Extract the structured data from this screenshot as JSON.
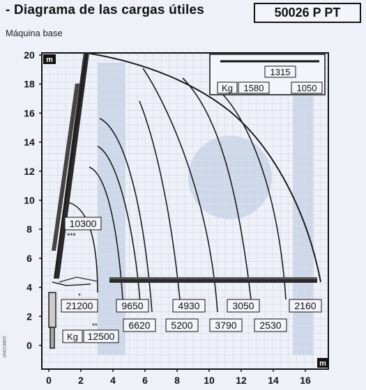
{
  "header": {
    "title": "- Diagrama de las cargas útiles",
    "model": "50026 P PT",
    "subtitle": "Máquina base",
    "side_code": "UNI21880D"
  },
  "axes": {
    "y_unit": "m",
    "x_unit": "m",
    "y_ticks": [
      "0",
      "2",
      "4",
      "6",
      "8",
      "10",
      "12",
      "14",
      "16",
      "18",
      "20"
    ],
    "x_ticks": [
      "0",
      "2",
      "4",
      "6",
      "8",
      "10",
      "12",
      "14",
      "16"
    ]
  },
  "inset": {
    "unit": "Kg",
    "top_value": "1315",
    "left_value": "1580",
    "right_value": "1050"
  },
  "labels": {
    "upper_value": "10300",
    "upper_mark": "***",
    "base_value": "21200",
    "base_mark": "*",
    "kg_unit": "Kg",
    "kg_value": "12500",
    "kg_mark": "**"
  },
  "load_boxes_row1": [
    "9650",
    "4930",
    "3050",
    "2160"
  ],
  "load_boxes_row2": [
    "6620",
    "5200",
    "3790",
    "2530"
  ],
  "colors": {
    "background": "#eef1f8",
    "curve": "#1a1a1a",
    "grid": "#d9dce6",
    "boom": "#222222"
  },
  "diagram": {
    "x_range": [
      -0.5,
      17
    ],
    "y_range": [
      -1,
      20.5
    ],
    "boom_max_height_m": 20.5,
    "boom_max_reach_m": 17
  }
}
